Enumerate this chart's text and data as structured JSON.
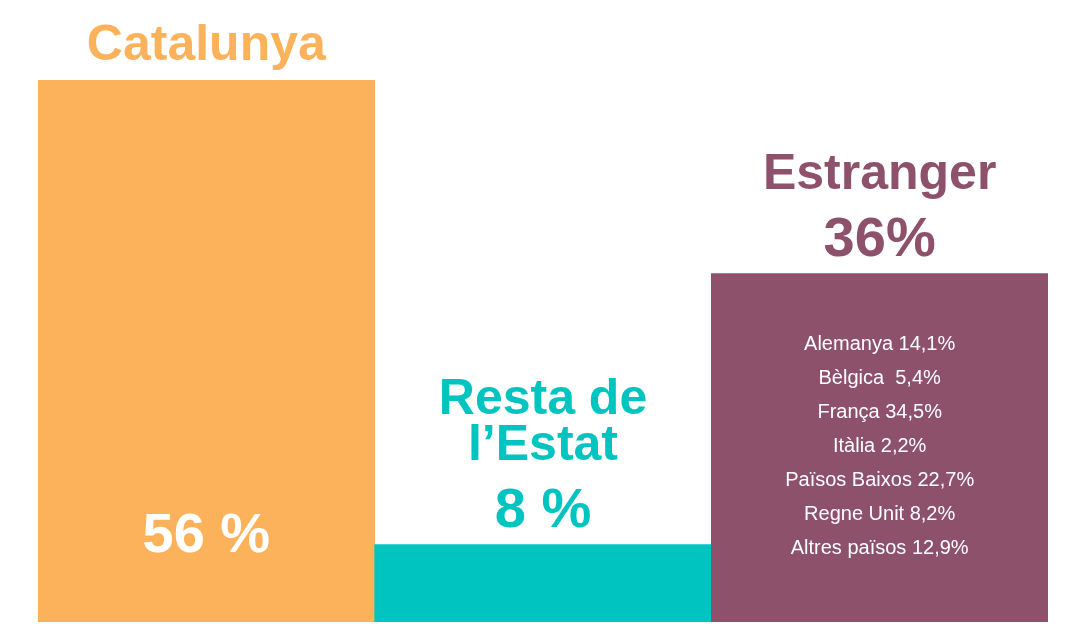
{
  "chart_data": {
    "type": "bar",
    "categories": [
      "Catalunya",
      "Resta de l’Estat",
      "Estranger"
    ],
    "values": [
      56,
      8,
      36
    ],
    "colors": [
      "#fbb25a",
      "#00c4c0",
      "#8d516b"
    ],
    "data_labels": true,
    "value_labels": [
      "56 %",
      "8 %",
      "36%"
    ],
    "annotations": [
      "Alemanya 14,1%",
      "Bèlgica  5,4%",
      "França 34,5%",
      "Itàlia 2,2%",
      "Països Baixos 22,7%",
      "Regne Unit 8,2%",
      "Altres països 12,9%"
    ]
  }
}
